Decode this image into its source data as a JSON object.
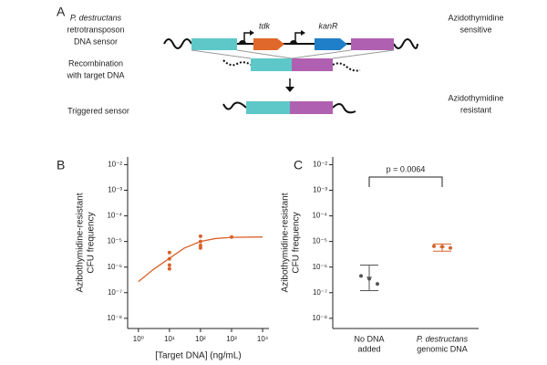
{
  "diagram": {
    "panel": "A",
    "sensor_label": [
      "P. destructans",
      "retrotransposon",
      "DNA sensor"
    ],
    "genes": [
      "tdk",
      "kanR"
    ],
    "sensitive_label": [
      "Azidothymidine",
      "sensitive"
    ],
    "recombination_label": [
      "Recombination",
      "with target DNA"
    ],
    "triggered_label": "Triggered sensor",
    "resistant_label": [
      "Azidothymidine",
      "resistant"
    ]
  },
  "chart_data": [
    {
      "type": "scatter",
      "panel": "B",
      "x_label": "[Target DNA] (ng/mL)",
      "y_label": [
        "Azibothymidine-resistant",
        "CFU frequency"
      ],
      "log_x": true,
      "log_y": true,
      "xlim": [
        0.45,
        16000
      ],
      "ylim": [
        4e-09,
        0.02
      ],
      "xticks": [
        {
          "value": 1,
          "label": "10⁰"
        },
        {
          "value": 10,
          "label": "10¹"
        },
        {
          "value": 100,
          "label": "10²"
        },
        {
          "value": 1000,
          "label": "10³"
        },
        {
          "value": 10000,
          "label": "10⁴"
        }
      ],
      "yticks": [
        {
          "value": 0.01,
          "label": "10⁻²"
        },
        {
          "value": 0.001,
          "label": "10⁻³"
        },
        {
          "value": 0.0001,
          "label": "10⁻⁴"
        },
        {
          "value": 1e-05,
          "label": "10⁻⁵"
        },
        {
          "value": 1e-06,
          "label": "10⁻⁶"
        },
        {
          "value": 1e-07,
          "label": "10⁻⁷"
        },
        {
          "value": 1e-08,
          "label": "10⁻⁸"
        }
      ],
      "color": "#d9622b",
      "x": [
        10,
        10,
        10,
        10,
        100,
        100,
        100,
        100,
        1000
      ],
      "values": [
        3.7e-06,
        2.1e-06,
        1.2e-06,
        8.5e-07,
        1.6e-05,
        1e-05,
        7e-06,
        5.6e-06,
        1.5e-05
      ],
      "fit": {
        "x": [
          1,
          3,
          10,
          30,
          100,
          300,
          1000,
          10000
        ],
        "values": [
          2.7e-07,
          8e-07,
          2.2e-06,
          5.5e-06,
          1e-05,
          1.3e-05,
          1.45e-05,
          1.5e-05
        ]
      }
    },
    {
      "type": "strip",
      "panel": "C",
      "y_label": [
        "Azibothymidine-resistant",
        "CFU frequency"
      ],
      "log_y": true,
      "ylim": [
        4e-09,
        0.02
      ],
      "yticks": [
        {
          "value": 0.01,
          "label": "10⁻²"
        },
        {
          "value": 0.001,
          "label": "10⁻³"
        },
        {
          "value": 0.0001,
          "label": "10⁻⁴"
        },
        {
          "value": 1e-05,
          "label": "10⁻⁵"
        },
        {
          "value": 1e-06,
          "label": "10⁻⁶"
        },
        {
          "value": 1e-07,
          "label": "10⁻⁷"
        },
        {
          "value": 1e-08,
          "label": "10⁻⁸"
        }
      ],
      "categories": [
        [
          "No DNA",
          "added"
        ],
        [
          "P. destructans",
          "genomic DNA"
        ]
      ],
      "colors": [
        "#555555",
        "#d9622b"
      ],
      "points": [
        [
          4.5e-07,
          3.5e-07,
          2.2e-07
        ],
        [
          6.5e-06,
          6.3e-06,
          5.6e-06
        ]
      ],
      "means": [
        4e-07,
        6e-06
      ],
      "ci": [
        [
          1.2e-07,
          1.2e-06
        ],
        [
          4.2e-06,
          8e-06
        ]
      ],
      "annotation": "p = 0.0064"
    }
  ]
}
